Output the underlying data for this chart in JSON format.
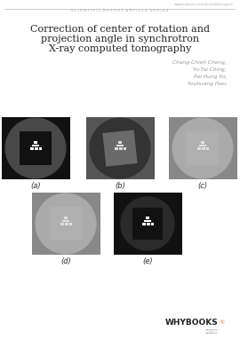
{
  "title_line1": "Correction of center of rotation and",
  "title_line2": "projection angle in synchrotron",
  "title_line3": "X-ray computed tomography",
  "authors": [
    "Chang-Chieh Cheng,",
    "Yu-Tai Ching,",
    "Pai-Hung Ko,",
    "Youhuang Hwu"
  ],
  "header_url": "www.nature.com/scientificreport",
  "header_series": "S C I E N T I F I C  R E P O R T  A R T I C L E  S E R I E S",
  "bg_color": "#ffffff",
  "panel_labels": [
    "(a)",
    "(b)",
    "(c)",
    "(d)",
    "(e)"
  ],
  "whybooks_color": "#333333",
  "whybooks_orange": "#e87722"
}
